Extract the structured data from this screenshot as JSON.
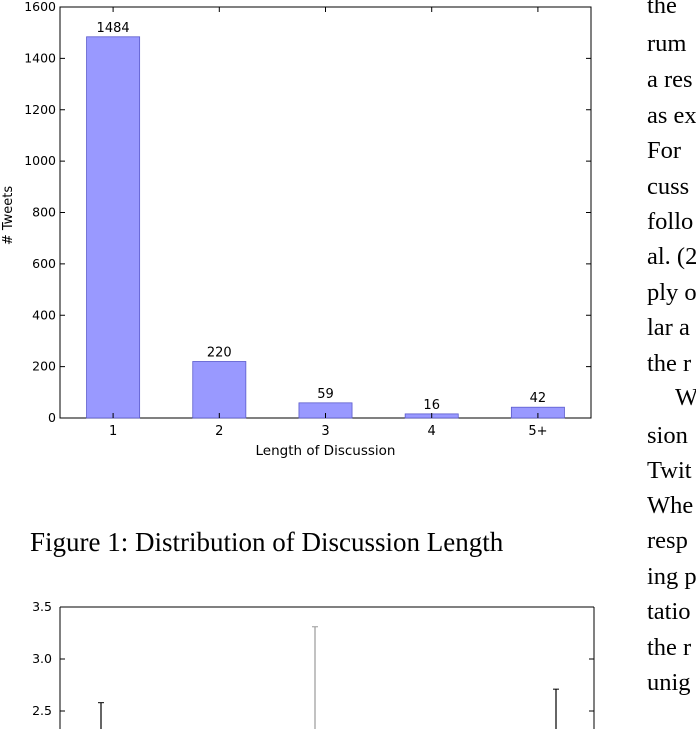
{
  "figure1": {
    "caption": "Figure 1: Distribution of Discussion Length",
    "chart_data": {
      "type": "bar",
      "categories": [
        "1",
        "2",
        "3",
        "4",
        "5+"
      ],
      "values": [
        1484,
        220,
        59,
        16,
        42
      ],
      "data_labels": [
        "1484",
        "220",
        "59",
        "16",
        "42"
      ],
      "xlabel": "Length of Discussion",
      "ylabel": "# Tweets",
      "ylim": [
        0,
        1600
      ],
      "yticks": [
        "0",
        "200",
        "400",
        "600",
        "800",
        "1000",
        "1200",
        "1400",
        "1600"
      ],
      "bar_color": "#9999ff",
      "grid": false
    }
  },
  "figure2": {
    "chart_data": {
      "type": "bar",
      "partial": true,
      "yticks": [
        "2.5",
        "3.0",
        "3.5"
      ],
      "ylim_visible": [
        2.3,
        3.5
      ],
      "error_bar_tops": [
        2.58,
        3.31,
        2.71
      ],
      "grid": false
    }
  },
  "side_text": {
    "lines": [
      "the",
      "rum",
      "a res",
      "as ex",
      "For",
      "cuss",
      "follo",
      "al. (2",
      "ply o",
      "lar a",
      "the r",
      "W",
      "sion",
      "Twit",
      "Whe",
      "resp",
      "ing p",
      "tatio",
      "the r",
      "unig"
    ]
  }
}
